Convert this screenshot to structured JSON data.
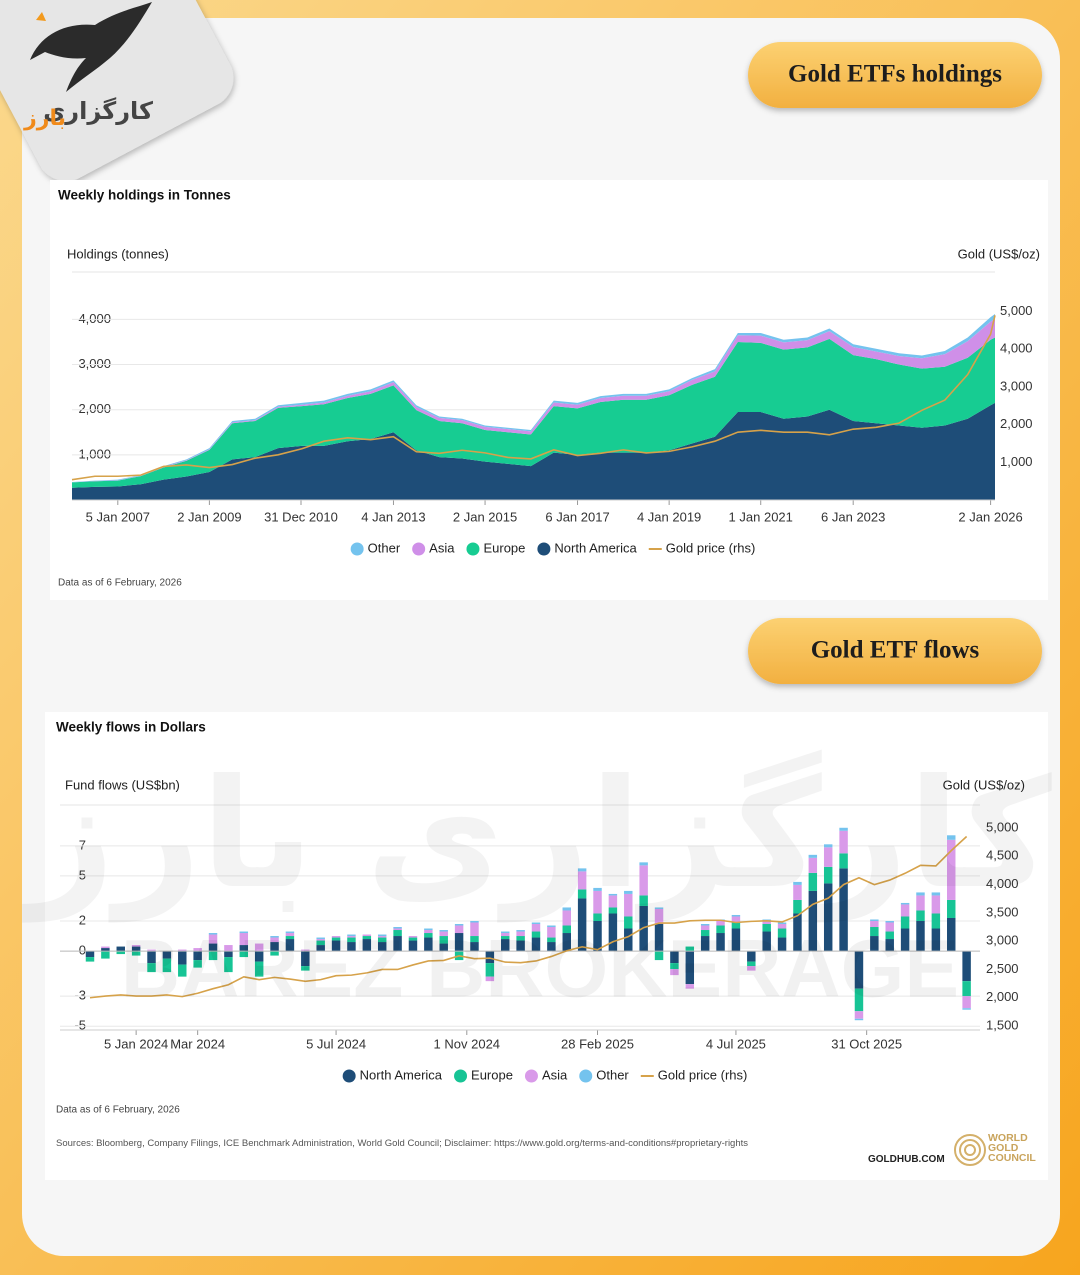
{
  "brand": {
    "logo_name": "کارگزاری",
    "logo_accent": "بارز",
    "watermark_fa": "کارگزاری بارز",
    "watermark_en": "BAREZ BROKERAGE"
  },
  "sections": [
    {
      "heading": "Gold ETFs holdings"
    },
    {
      "heading": "Gold ETF flows"
    }
  ],
  "chart_data": [
    {
      "type": "area",
      "stacked": true,
      "title": "Weekly holdings in Tonnes",
      "y_label": "Holdings (tonnes)",
      "y2_label": "Gold (US$/oz)",
      "note": "Data as of 6 February, 2026",
      "x": [
        "2006-01-06",
        "2006-07-07",
        "2007-01-05",
        "2007-07-06",
        "2008-01-04",
        "2008-07-04",
        "2009-01-02",
        "2009-07-03",
        "2010-01-01",
        "2010-07-02",
        "2011-01-07",
        "2011-07-01",
        "2012-01-06",
        "2012-07-06",
        "2013-01-04",
        "2013-07-05",
        "2014-01-03",
        "2014-07-04",
        "2015-01-02",
        "2015-07-03",
        "2016-01-01",
        "2016-07-01",
        "2017-01-06",
        "2017-07-07",
        "2018-01-05",
        "2018-07-06",
        "2019-01-04",
        "2019-07-05",
        "2020-01-03",
        "2020-07-03",
        "2021-01-01",
        "2021-07-02",
        "2022-01-07",
        "2022-07-01",
        "2023-01-06",
        "2023-07-07",
        "2024-01-05",
        "2024-07-05",
        "2025-01-03",
        "2025-07-04",
        "2026-01-02",
        "2026-02-06"
      ],
      "xlim": [
        "2006-01-06",
        "2026-02-06"
      ],
      "xticks": [
        {
          "value": "2007-01-05",
          "label": "5 Jan 2007"
        },
        {
          "value": "2009-01-02",
          "label": "2 Jan 2009"
        },
        {
          "value": "2010-12-31",
          "label": "31 Dec 2010"
        },
        {
          "value": "2013-01-04",
          "label": "4 Jan 2013"
        },
        {
          "value": "2015-01-02",
          "label": "2 Jan 2015"
        },
        {
          "value": "2017-01-06",
          "label": "6 Jan 2017"
        },
        {
          "value": "2019-01-04",
          "label": "4 Jan 2019"
        },
        {
          "value": "2021-01-01",
          "label": "1 Jan 2021"
        },
        {
          "value": "2023-01-06",
          "label": "6 Jan 2023"
        },
        {
          "value": "2026-01-02",
          "label": "2 Jan 2026"
        }
      ],
      "ylim": [
        0,
        5050
      ],
      "yticks": [
        {
          "value": 1000,
          "label": "1,000"
        },
        {
          "value": 2000,
          "label": "2,000"
        },
        {
          "value": 3000,
          "label": "3,000"
        },
        {
          "value": 4000,
          "label": "4,000"
        }
      ],
      "y2lim": [
        0,
        6050
      ],
      "y2ticks": [
        {
          "value": 1000,
          "label": "1,000"
        },
        {
          "value": 2000,
          "label": "2,000"
        },
        {
          "value": 3000,
          "label": "3,000"
        },
        {
          "value": 4000,
          "label": "4,000"
        },
        {
          "value": 5000,
          "label": "5,000"
        }
      ],
      "grid": true,
      "legend": "bottom",
      "series": [
        {
          "name": "Other",
          "color": "#74c3ee",
          "values": [
            10,
            10,
            15,
            15,
            20,
            20,
            25,
            30,
            30,
            35,
            40,
            40,
            40,
            40,
            40,
            40,
            30,
            30,
            30,
            30,
            30,
            40,
            40,
            40,
            40,
            40,
            40,
            40,
            50,
            50,
            60,
            60,
            60,
            60,
            60,
            60,
            60,
            60,
            70,
            80,
            100,
            100
          ]
        },
        {
          "name": "Asia",
          "color": "#cf8fe8",
          "values": [
            0,
            5,
            5,
            5,
            10,
            10,
            15,
            20,
            20,
            25,
            30,
            40,
            50,
            60,
            70,
            70,
            70,
            70,
            70,
            70,
            70,
            80,
            80,
            90,
            90,
            90,
            90,
            110,
            120,
            150,
            160,
            160,
            160,
            170,
            180,
            170,
            190,
            230,
            280,
            370,
            400,
            420
          ]
        },
        {
          "name": "Europe",
          "color": "#17cc92",
          "values": [
            120,
            125,
            130,
            180,
            270,
            350,
            490,
            800,
            800,
            890,
            880,
            920,
            960,
            1000,
            1040,
            890,
            800,
            780,
            700,
            700,
            700,
            1030,
            1030,
            1120,
            1170,
            1170,
            1220,
            1300,
            1330,
            1550,
            1530,
            1530,
            1530,
            1570,
            1460,
            1420,
            1350,
            1310,
            1300,
            1350,
            1450,
            1450
          ]
        },
        {
          "name": "North America",
          "color": "#1e4d78",
          "values": [
            270,
            290,
            300,
            350,
            450,
            520,
            620,
            900,
            950,
            1150,
            1200,
            1200,
            1300,
            1350,
            1500,
            1100,
            950,
            920,
            850,
            800,
            750,
            1050,
            1000,
            1050,
            1050,
            1050,
            1100,
            1250,
            1400,
            1950,
            1950,
            1800,
            1850,
            2000,
            1750,
            1700,
            1650,
            1600,
            1650,
            1800,
            2100,
            2150
          ]
        },
        {
          "name": "Gold price (rhs)",
          "color": "#d6a24a",
          "type": "line",
          "axis": "y2",
          "values": [
            540,
            630,
            630,
            660,
            890,
            930,
            860,
            940,
            1110,
            1200,
            1360,
            1560,
            1650,
            1600,
            1680,
            1280,
            1240,
            1320,
            1250,
            1130,
            1090,
            1330,
            1180,
            1240,
            1330,
            1250,
            1290,
            1410,
            1560,
            1800,
            1850,
            1800,
            1800,
            1730,
            1880,
            1930,
            2040,
            2380,
            2650,
            3330,
            4400,
            4900
          ]
        }
      ]
    },
    {
      "type": "bar",
      "stacked": true,
      "title": "Weekly flows in Dollars",
      "y_label": "Fund flows (US$bn)",
      "y2_label": "Gold (US$/oz)",
      "note": "Data as of 6 February, 2026",
      "x": [
        "2023-11-24",
        "2023-12-08",
        "2023-12-22",
        "2024-01-05",
        "2024-01-19",
        "2024-02-02",
        "2024-02-16",
        "2024-03-01",
        "2024-03-15",
        "2024-03-29",
        "2024-04-12",
        "2024-04-26",
        "2024-05-10",
        "2024-05-24",
        "2024-06-07",
        "2024-06-21",
        "2024-07-05",
        "2024-07-19",
        "2024-08-02",
        "2024-08-16",
        "2024-08-30",
        "2024-09-13",
        "2024-09-27",
        "2024-10-11",
        "2024-10-25",
        "2024-11-08",
        "2024-11-22",
        "2024-12-06",
        "2024-12-20",
        "2025-01-03",
        "2025-01-17",
        "2025-01-31",
        "2025-02-14",
        "2025-02-28",
        "2025-03-14",
        "2025-03-28",
        "2025-04-11",
        "2025-04-25",
        "2025-05-09",
        "2025-05-23",
        "2025-06-06",
        "2025-06-20",
        "2025-07-04",
        "2025-07-18",
        "2025-08-01",
        "2025-08-15",
        "2025-08-29",
        "2025-09-12",
        "2025-09-26",
        "2025-10-10",
        "2025-10-24",
        "2025-11-07",
        "2025-11-21",
        "2025-12-05",
        "2025-12-19",
        "2026-01-02",
        "2026-01-16",
        "2026-01-30"
      ],
      "xlim": [
        "2023-11-24",
        "2026-02-13"
      ],
      "xticks": [
        {
          "value": "2024-01-05",
          "label": "5 Jan 2024"
        },
        {
          "value": "2024-03",
          "label": "Mar 2024"
        },
        {
          "value": "2024-07-05",
          "label": "5 Jul 2024"
        },
        {
          "value": "2024-11-01",
          "label": "1 Nov 2024"
        },
        {
          "value": "2025-02-28",
          "label": "28 Feb 2025"
        },
        {
          "value": "2025-07-04",
          "label": "4 Jul 2025"
        },
        {
          "value": "2025-10-31",
          "label": "31 Oct 2025"
        }
      ],
      "ylim": [
        -5.25,
        9.05
      ],
      "yticks": [
        -5,
        -3,
        0,
        2,
        5,
        7
      ],
      "y2lim": [
        1430,
        5230
      ],
      "y2ticks": [
        {
          "value": 1500,
          "label": "1,500"
        },
        {
          "value": 2000,
          "label": "2,000"
        },
        {
          "value": 2500,
          "label": "2,500"
        },
        {
          "value": 3000,
          "label": "3,000"
        },
        {
          "value": 3500,
          "label": "3,500"
        },
        {
          "value": 4000,
          "label": "4,000"
        },
        {
          "value": 4500,
          "label": "4,500"
        },
        {
          "value": 5000,
          "label": "5,000"
        }
      ],
      "grid": true,
      "legend": "bottom",
      "series": [
        {
          "name": "North America",
          "color": "#1e4d78",
          "values": [
            -0.4,
            0.2,
            0.3,
            0.3,
            -0.8,
            -0.5,
            -0.9,
            -0.6,
            0.5,
            -0.4,
            0.4,
            -0.7,
            0.6,
            0.8,
            -1.0,
            0.4,
            0.7,
            0.6,
            0.8,
            0.6,
            1.0,
            0.7,
            0.9,
            0.5,
            1.2,
            0.6,
            -0.8,
            0.8,
            0.7,
            0.9,
            0.6,
            1.2,
            3.5,
            2.0,
            2.5,
            1.5,
            3.0,
            1.8,
            -0.8,
            -2.2,
            1.0,
            1.2,
            1.5,
            -0.7,
            1.3,
            0.9,
            2.5,
            4.0,
            4.5,
            5.5,
            -2.5,
            1.0,
            0.8,
            1.5,
            2.0,
            1.5,
            2.2,
            -2.0
          ]
        },
        {
          "name": "Europe",
          "color": "#17c495",
          "values": [
            -0.3,
            -0.5,
            -0.2,
            -0.3,
            -0.6,
            -0.9,
            -0.8,
            -0.5,
            -0.6,
            -1.0,
            -0.4,
            -1.0,
            -0.3,
            0.2,
            -0.3,
            0.3,
            0.2,
            0.3,
            0.2,
            0.3,
            0.4,
            0.2,
            0.3,
            0.5,
            -0.6,
            0.4,
            -0.9,
            0.2,
            0.3,
            0.4,
            0.3,
            0.5,
            0.6,
            0.5,
            0.4,
            0.8,
            0.7,
            -0.6,
            -0.4,
            0.3,
            0.4,
            0.5,
            0.4,
            -0.3,
            0.5,
            0.6,
            0.9,
            1.2,
            1.1,
            1.0,
            -1.5,
            0.6,
            0.5,
            0.8,
            0.7,
            1.0,
            1.2,
            -1.0
          ]
        },
        {
          "name": "Asia",
          "color": "#d99ae9",
          "values": [
            0,
            0.1,
            0,
            0.1,
            0.1,
            0.0,
            0.1,
            0.2,
            0.6,
            0.4,
            0.8,
            0.5,
            0.3,
            0.2,
            0.1,
            0.1,
            0.1,
            0.1,
            0.1,
            0.1,
            0.1,
            0.1,
            0.2,
            0.3,
            0.5,
            0.9,
            -0.3,
            0.2,
            0.3,
            0.5,
            0.7,
            1.0,
            1.2,
            1.5,
            0.8,
            1.5,
            2.0,
            1.0,
            -0.4,
            -0.3,
            0.3,
            0.3,
            0.4,
            -0.3,
            0.2,
            0.3,
            1.0,
            1.0,
            1.3,
            1.5,
            -0.5,
            0.4,
            0.6,
            0.8,
            1.0,
            1.2,
            4.0,
            -0.8
          ]
        },
        {
          "name": "Other",
          "color": "#74c3ee",
          "values": [
            0,
            0,
            0,
            0,
            0,
            0,
            0,
            0,
            0.1,
            0,
            0.1,
            0,
            0.1,
            0.1,
            0,
            0.1,
            0,
            0.1,
            0,
            0.1,
            0.1,
            0,
            0.1,
            0.1,
            0.1,
            0.1,
            0,
            0.1,
            0.1,
            0.1,
            0.1,
            0.2,
            0.2,
            0.2,
            0.1,
            0.2,
            0.2,
            0.1,
            0,
            0,
            0.1,
            0.1,
            0.1,
            0,
            0.1,
            0.1,
            0.2,
            0.2,
            0.2,
            0.2,
            -0.1,
            0.1,
            0.1,
            0.1,
            0.2,
            0.2,
            0.3,
            -0.1
          ]
        },
        {
          "name": "Gold price (rhs)",
          "color": "#d6a24a",
          "type": "line",
          "axis": "y2",
          "values": [
            2000,
            2030,
            2050,
            2030,
            2030,
            2050,
            2020,
            2080,
            2160,
            2230,
            2370,
            2320,
            2360,
            2330,
            2290,
            2320,
            2390,
            2400,
            2440,
            2500,
            2500,
            2580,
            2650,
            2660,
            2740,
            2690,
            2700,
            2630,
            2620,
            2650,
            2730,
            2830,
            2900,
            2850,
            2990,
            3080,
            3240,
            3320,
            3320,
            3360,
            3370,
            3370,
            3330,
            3350,
            3360,
            3340,
            3450,
            3650,
            3760,
            4000,
            4120,
            4000,
            4080,
            4200,
            4340,
            4330,
            4600,
            4850
          ]
        }
      ]
    }
  ],
  "footer": {
    "sources": "Sources: Bloomberg, Company Filings, ICE Benchmark Administration, World Gold Council; Disclaimer: https://www.gold.org/terms-and-conditions#proprietary-rights",
    "site": "GOLDHUB.COM",
    "org": "WORLD GOLD COUNCIL"
  }
}
